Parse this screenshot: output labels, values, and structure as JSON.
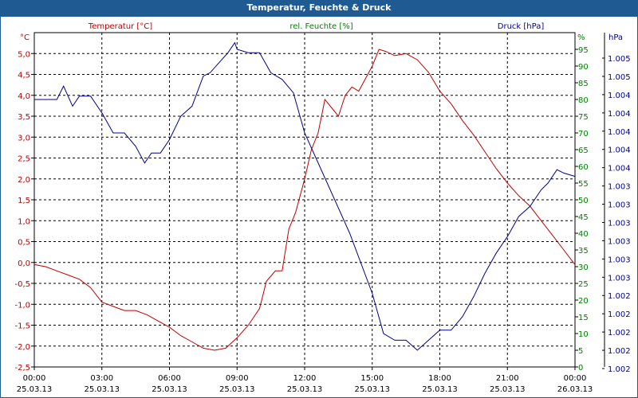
{
  "window": {
    "title": "Temperatur, Feuchte & Druck"
  },
  "colors": {
    "temperature": "#c00000",
    "humidity": "#008000",
    "pressure": "#00008b",
    "title_bg": "#1f5a93"
  },
  "chart_data": {
    "type": "line",
    "title": "Temperatur, Feuchte & Druck",
    "x_ticks": [
      {
        "time": "00:00",
        "date": "25.03.13"
      },
      {
        "time": "03:00",
        "date": "25.03.13"
      },
      {
        "time": "06:00",
        "date": "25.03.13"
      },
      {
        "time": "09:00",
        "date": "25.03.13"
      },
      {
        "time": "12:00",
        "date": "25.03.13"
      },
      {
        "time": "15:00",
        "date": "25.03.13"
      },
      {
        "time": "18:00",
        "date": "25.03.13"
      },
      {
        "time": "21:00",
        "date": "25.03.13"
      },
      {
        "time": "00:00",
        "date": "26.03.13"
      }
    ],
    "x_range_hours": [
      0,
      24
    ],
    "axes": {
      "temperature": {
        "label": "Temperatur [°C]",
        "unit": "°C",
        "ylim": [
          -2.5,
          5.5
        ],
        "ticks": [
          "-2,5",
          "-2,0",
          "-1,5",
          "-1,0",
          "-0,5",
          "0,0",
          "0,5",
          "1,0",
          "1,5",
          "2,0",
          "2,5",
          "3,0",
          "3,5",
          "4,0",
          "4,5",
          "5,0"
        ]
      },
      "humidity": {
        "label": "rel. Feuchte [%]",
        "unit": "%",
        "ylim": [
          0,
          100
        ],
        "ticks": [
          "0",
          "5",
          "10",
          "15",
          "20",
          "25",
          "30",
          "35",
          "40",
          "45",
          "50",
          "55",
          "60",
          "65",
          "70",
          "75",
          "80",
          "85",
          "90",
          "95"
        ]
      },
      "pressure": {
        "label": "Druck [hPa]",
        "unit": "hPa",
        "ticks": [
          "1.002",
          "1.002",
          "1.002",
          "1.002",
          "1.002",
          "1.003",
          "1.003",
          "1.003",
          "1.003",
          "1.003",
          "1.003",
          "1.004",
          "1.004",
          "1.004",
          "1.004",
          "1.004",
          "1.005",
          "1.005"
        ]
      }
    },
    "series": [
      {
        "name": "Temperatur",
        "axis": "temperature",
        "points": [
          [
            0,
            -0.05
          ],
          [
            0.5,
            -0.1
          ],
          [
            1,
            -0.2
          ],
          [
            1.5,
            -0.3
          ],
          [
            2,
            -0.4
          ],
          [
            2.5,
            -0.6
          ],
          [
            3,
            -0.95
          ],
          [
            3.5,
            -1.05
          ],
          [
            4,
            -1.15
          ],
          [
            4.5,
            -1.15
          ],
          [
            5,
            -1.25
          ],
          [
            5.5,
            -1.4
          ],
          [
            6,
            -1.55
          ],
          [
            6.5,
            -1.75
          ],
          [
            7,
            -1.9
          ],
          [
            7.5,
            -2.05
          ],
          [
            8,
            -2.1
          ],
          [
            8.5,
            -2.05
          ],
          [
            9,
            -1.8
          ],
          [
            9.5,
            -1.5
          ],
          [
            10,
            -1.1
          ],
          [
            10.3,
            -0.45
          ],
          [
            10.7,
            -0.2
          ],
          [
            11,
            -0.2
          ],
          [
            11.3,
            0.8
          ],
          [
            11.6,
            1.2
          ],
          [
            12,
            2.0
          ],
          [
            12.3,
            2.7
          ],
          [
            12.6,
            3.1
          ],
          [
            12.9,
            3.9
          ],
          [
            13.2,
            3.7
          ],
          [
            13.5,
            3.5
          ],
          [
            13.8,
            4.0
          ],
          [
            14.1,
            4.2
          ],
          [
            14.4,
            4.1
          ],
          [
            14.7,
            4.4
          ],
          [
            15,
            4.7
          ],
          [
            15.3,
            5.1
          ],
          [
            15.6,
            5.05
          ],
          [
            16,
            4.95
          ],
          [
            16.5,
            5.0
          ],
          [
            17,
            4.85
          ],
          [
            17.5,
            4.55
          ],
          [
            18,
            4.1
          ],
          [
            18.5,
            3.8
          ],
          [
            19,
            3.4
          ],
          [
            19.5,
            3.05
          ],
          [
            20,
            2.65
          ],
          [
            20.5,
            2.25
          ],
          [
            21,
            1.9
          ],
          [
            21.5,
            1.6
          ],
          [
            22,
            1.35
          ],
          [
            22.5,
            1.0
          ],
          [
            23,
            0.65
          ],
          [
            23.5,
            0.3
          ],
          [
            24,
            -0.05
          ]
        ]
      },
      {
        "name": "rel. Feuchte",
        "axis": "humidity",
        "points": [
          [
            0,
            80
          ],
          [
            1,
            80
          ],
          [
            1.3,
            84
          ],
          [
            1.7,
            78
          ],
          [
            2,
            81
          ],
          [
            2.5,
            81
          ],
          [
            3,
            76
          ],
          [
            3.5,
            70
          ],
          [
            4,
            70
          ],
          [
            4.5,
            66
          ],
          [
            4.9,
            61
          ],
          [
            5.2,
            64
          ],
          [
            5.6,
            64
          ],
          [
            6,
            68
          ],
          [
            6.5,
            75
          ],
          [
            7,
            78
          ],
          [
            7.5,
            87
          ],
          [
            7.8,
            88
          ],
          [
            8.2,
            91
          ],
          [
            8.6,
            94
          ],
          [
            8.9,
            97
          ],
          [
            9,
            95
          ],
          [
            9.5,
            94
          ],
          [
            10,
            94
          ],
          [
            10.5,
            88
          ],
          [
            11,
            86
          ],
          [
            11.5,
            82
          ],
          [
            12,
            70
          ],
          [
            13,
            55
          ],
          [
            14,
            40
          ],
          [
            15,
            22
          ],
          [
            15.5,
            10
          ],
          [
            16,
            8
          ],
          [
            16.5,
            8
          ],
          [
            17,
            5
          ],
          [
            17.5,
            8
          ],
          [
            18,
            11
          ],
          [
            18.5,
            11
          ],
          [
            19,
            15
          ],
          [
            19.5,
            21
          ],
          [
            20,
            28
          ],
          [
            20.5,
            34
          ],
          [
            21,
            39
          ],
          [
            21.5,
            45
          ],
          [
            22,
            48
          ],
          [
            22.5,
            53
          ],
          [
            22.8,
            55
          ],
          [
            23.2,
            59
          ],
          [
            23.5,
            58
          ],
          [
            24,
            57
          ]
        ]
      }
    ]
  }
}
